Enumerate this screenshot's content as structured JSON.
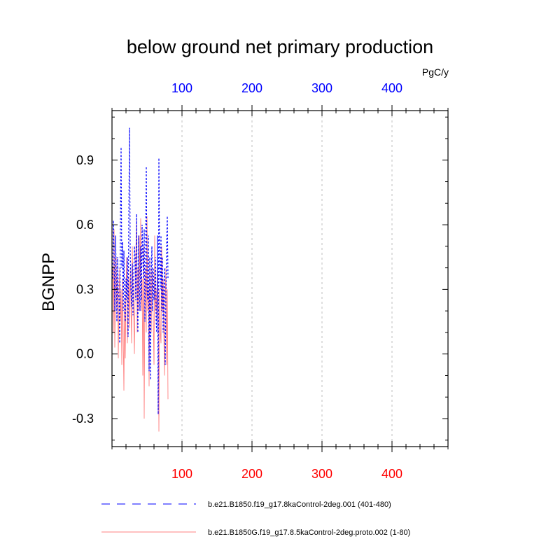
{
  "chart_data": {
    "type": "line",
    "title": "below ground net primary production",
    "units": "PgC/y",
    "ylabel": "BGNPP",
    "xlim": [
      0,
      480
    ],
    "ylim": [
      -0.43,
      1.13
    ],
    "yticks": [
      -0.3,
      0.0,
      0.3,
      0.6,
      0.9
    ],
    "ytick_labels": [
      "-0.3",
      "0.0",
      "0.3",
      "0.6",
      "0.9"
    ],
    "xticks_top": [
      100,
      200,
      300,
      400
    ],
    "xtick_labels_top": [
      "100",
      "200",
      "300",
      "400"
    ],
    "xticks_bottom": [
      100,
      200,
      300,
      400
    ],
    "xtick_labels_bottom": [
      "100",
      "200",
      "300",
      "400"
    ],
    "grid": "vertical dashed at x ticks",
    "legend_placement": "bottom",
    "series": [
      {
        "name": "b.e21.B1850.f19_g17.8kaControl-2deg.001 (401-480)",
        "color": "#0000ff",
        "style": "dashed",
        "x": [
          1,
          2,
          3,
          4,
          5,
          6,
          7,
          8,
          9,
          10,
          11,
          12,
          13,
          14,
          15,
          16,
          17,
          18,
          19,
          20,
          21,
          22,
          23,
          24,
          25,
          26,
          27,
          28,
          29,
          30,
          31,
          32,
          33,
          34,
          35,
          36,
          37,
          38,
          39,
          40,
          41,
          42,
          43,
          44,
          45,
          46,
          47,
          48,
          49,
          50,
          51,
          52,
          53,
          54,
          55,
          56,
          57,
          58,
          59,
          60,
          61,
          62,
          63,
          64,
          65,
          66,
          67,
          68,
          69,
          70,
          71,
          72,
          73,
          74,
          75,
          76,
          77,
          78,
          79,
          80
        ],
        "values": [
          0.35,
          0.62,
          0.48,
          0.2,
          0.55,
          0.4,
          0.15,
          0.45,
          0.3,
          0.25,
          0.05,
          0.6,
          0.96,
          0.4,
          0.52,
          0.2,
          0.48,
          0.2,
          0.15,
          0.35,
          0.25,
          0.45,
          0.08,
          0.62,
          1.05,
          0.5,
          0.3,
          0.22,
          0.42,
          0.18,
          0.35,
          0.5,
          0.45,
          0.25,
          0.65,
          0.3,
          0.1,
          0.55,
          0.35,
          0.2,
          0.5,
          0.25,
          0.6,
          0.45,
          0.35,
          0.58,
          0.15,
          0.5,
          0.87,
          0.3,
          0.25,
          0.55,
          -0.08,
          0.45,
          -0.12,
          0.35,
          0.5,
          0.2,
          0.4,
          0.25,
          0.3,
          0.45,
          0.15,
          0.1,
          0.55,
          -0.28,
          0.91,
          0.4,
          0.3,
          0.55,
          0.2,
          0.45,
          0.1,
          0.3,
          0.4,
          -0.05,
          0.25,
          0.5,
          0.64,
          0.35
        ]
      },
      {
        "name": "b.e21.B1850G.f19_g17.8.5kaControl-2deg.proto.002 (1-80)",
        "color": "#ff8080",
        "style": "solid",
        "x": [
          1,
          2,
          3,
          4,
          5,
          6,
          7,
          8,
          9,
          10,
          11,
          12,
          13,
          14,
          15,
          16,
          17,
          18,
          19,
          20,
          21,
          22,
          23,
          24,
          25,
          26,
          27,
          28,
          29,
          30,
          31,
          32,
          33,
          34,
          35,
          36,
          37,
          38,
          39,
          40,
          41,
          42,
          43,
          44,
          45,
          46,
          47,
          48,
          49,
          50,
          51,
          52,
          53,
          54,
          55,
          56,
          57,
          58,
          59,
          60,
          61,
          62,
          63,
          64,
          65,
          66,
          67,
          68,
          69,
          70,
          71,
          72,
          73,
          74,
          75,
          76,
          77,
          78,
          79,
          80
        ],
        "values": [
          0.4,
          0.1,
          0.58,
          0.03,
          0.3,
          0.45,
          0.2,
          0.35,
          -0.02,
          0.25,
          0.4,
          0.15,
          0.3,
          -0.05,
          0.35,
          0.1,
          -0.17,
          0.25,
          -0.02,
          0.3,
          0.45,
          0.05,
          0.2,
          0.35,
          0.12,
          0.4,
          0.25,
          0.05,
          0.5,
          0.3,
          0.18,
          0.0,
          0.3,
          0.45,
          0.62,
          0.1,
          0.4,
          0.2,
          0.55,
          0.35,
          0.63,
          0.2,
          0.35,
          -0.1,
          0.5,
          -0.3,
          0.3,
          0.4,
          0.1,
          0.64,
          0.2,
          0.3,
          -0.15,
          0.45,
          0.25,
          0.1,
          0.4,
          0.3,
          0.15,
          -0.05,
          0.55,
          0.2,
          0.3,
          0.15,
          0.4,
          0.25,
          -0.36,
          0.3,
          0.1,
          0.05,
          0.5,
          0.2,
          0.35,
          0.1,
          -0.1,
          0.25,
          0.4,
          -0.05,
          0.3,
          -0.21
        ]
      }
    ]
  }
}
